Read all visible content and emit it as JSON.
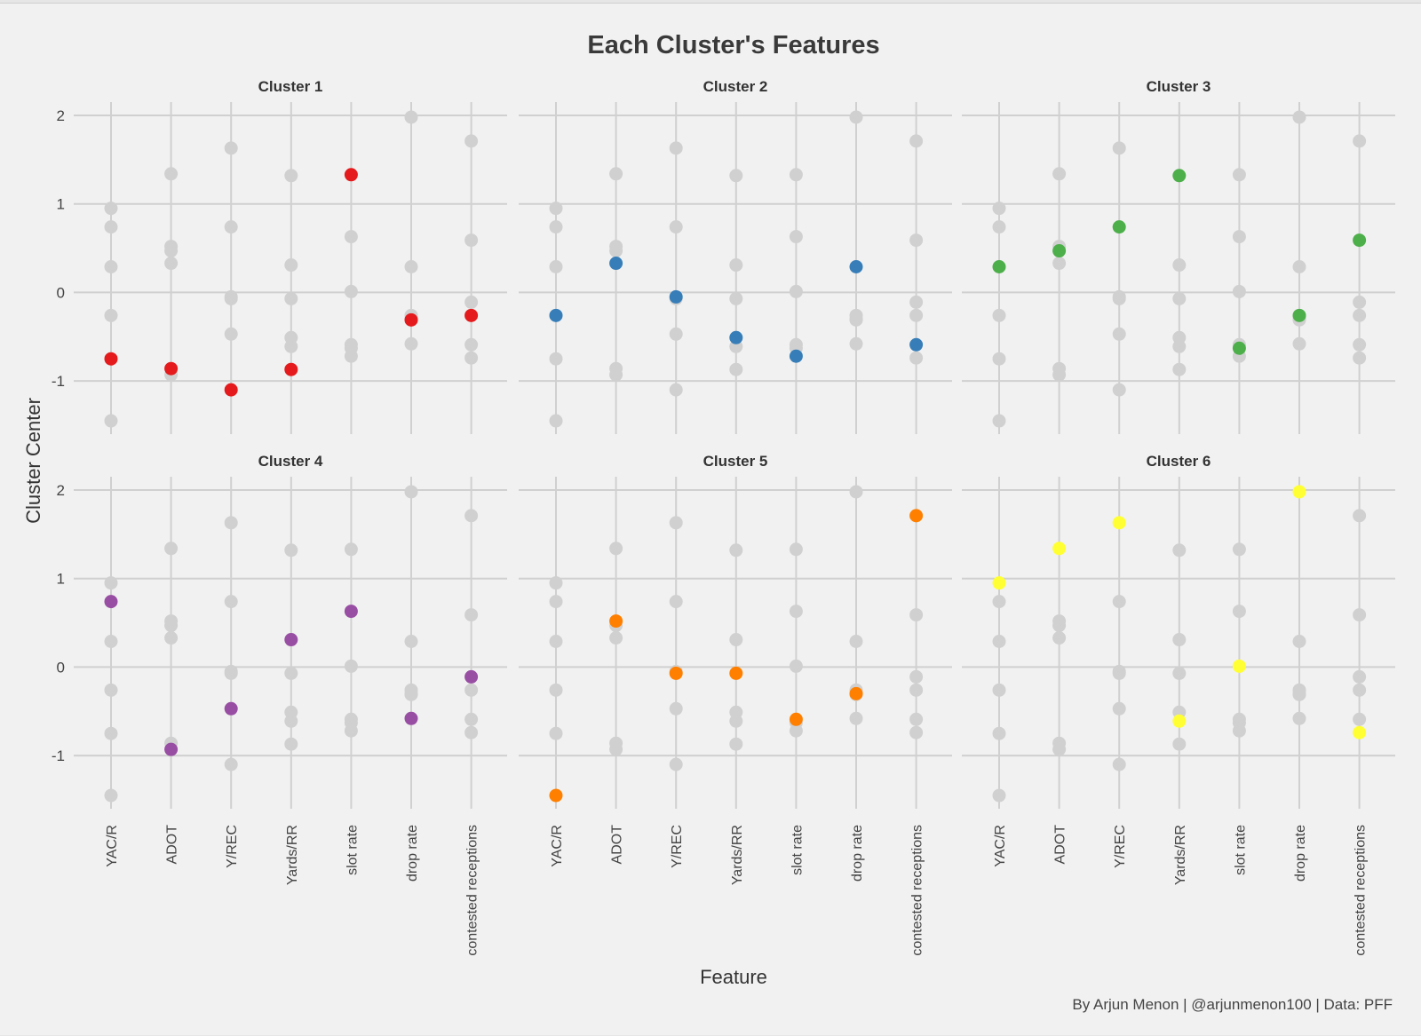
{
  "chart_data": {
    "type": "scatter",
    "title": "Each Cluster's Features",
    "xlabel": "Feature",
    "ylabel": "Cluster Center",
    "caption": "By Arjun Menon | @arjunmenon100 | Data: PFF",
    "categories": [
      "YAC/R",
      "ADOT",
      "Y/REC",
      "Yards/RR",
      "slot rate",
      "drop rate",
      "contested receptions"
    ],
    "yticks": [
      2,
      1,
      0,
      -1
    ],
    "ylim": [
      -1.6,
      2.15
    ],
    "background_color": "#d0d0d0",
    "series": [
      {
        "name": "Cluster 1",
        "color": "#e41a1c",
        "values": [
          -0.75,
          -0.86,
          -1.1,
          -0.87,
          1.33,
          -0.31,
          -0.26
        ]
      },
      {
        "name": "Cluster 2",
        "color": "#377eb8",
        "values": [
          -0.26,
          0.33,
          -0.05,
          -0.51,
          -0.72,
          0.29,
          -0.59
        ]
      },
      {
        "name": "Cluster 3",
        "color": "#4daf4a",
        "values": [
          0.29,
          0.47,
          0.74,
          1.32,
          -0.63,
          -0.26,
          0.59
        ]
      },
      {
        "name": "Cluster 4",
        "color": "#984ea3",
        "values": [
          0.74,
          -0.93,
          -0.47,
          0.31,
          0.63,
          -0.58,
          -0.11
        ]
      },
      {
        "name": "Cluster 5",
        "color": "#ff7f00",
        "values": [
          -1.45,
          0.52,
          -0.07,
          -0.07,
          -0.59,
          -0.3,
          1.71
        ]
      },
      {
        "name": "Cluster 6",
        "color": "#ffff33",
        "values": [
          0.95,
          1.34,
          1.63,
          -0.61,
          0.01,
          1.98,
          -0.74
        ]
      }
    ]
  }
}
